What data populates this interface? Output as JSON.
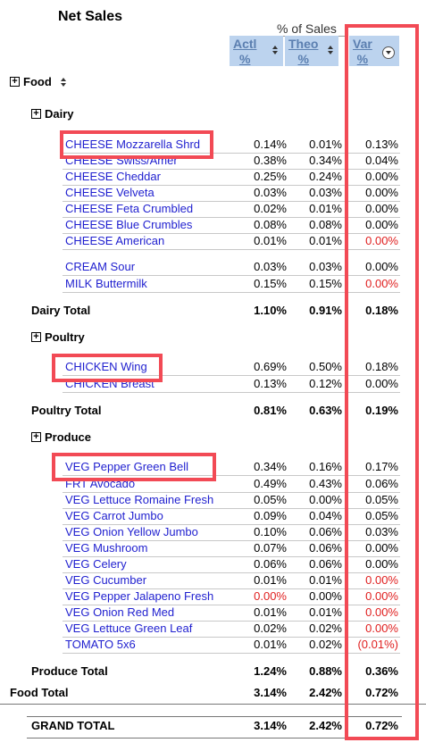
{
  "title": "Net Sales",
  "pct_header": "% of Sales",
  "columns": {
    "actl": [
      "Actl",
      "%"
    ],
    "theo": [
      "Theo",
      "%"
    ],
    "var": [
      "Var",
      "%"
    ]
  },
  "groups": {
    "food": "Food",
    "dairy": "Dairy",
    "poultry": "Poultry",
    "produce": "Produce"
  },
  "dairy_rows": [
    {
      "name": "CHEESE Mozzarella Shrd",
      "actl": "0.14%",
      "theo": "0.01%",
      "var": "0.13%",
      "neg": false
    },
    {
      "name": "CHEESE Swiss/Amer",
      "actl": "0.38%",
      "theo": "0.34%",
      "var": "0.04%",
      "neg": false
    },
    {
      "name": "CHEESE Cheddar",
      "actl": "0.25%",
      "theo": "0.24%",
      "var": "0.00%",
      "neg": false
    },
    {
      "name": "CHEESE Velveta",
      "actl": "0.03%",
      "theo": "0.03%",
      "var": "0.00%",
      "neg": false
    },
    {
      "name": "CHEESE Feta Crumbled",
      "actl": "0.02%",
      "theo": "0.01%",
      "var": "0.00%",
      "neg": false
    },
    {
      "name": "CHEESE Blue Crumbles",
      "actl": "0.08%",
      "theo": "0.08%",
      "var": "0.00%",
      "neg": false
    },
    {
      "name": "CHEESE American",
      "actl": "0.01%",
      "theo": "0.01%",
      "var": "0.00%",
      "neg": true
    },
    {
      "name": "CREAM Sour",
      "actl": "0.03%",
      "theo": "0.03%",
      "var": "0.00%",
      "neg": false
    },
    {
      "name": "MILK Buttermilk",
      "actl": "0.15%",
      "theo": "0.15%",
      "var": "0.00%",
      "neg": true
    }
  ],
  "dairy_total": {
    "label": "Dairy Total",
    "actl": "1.10%",
    "theo": "0.91%",
    "var": "0.18%"
  },
  "poultry_rows": [
    {
      "name": "CHICKEN Wing",
      "actl": "0.69%",
      "theo": "0.50%",
      "var": "0.18%",
      "neg": false
    },
    {
      "name": "CHICKEN Breast",
      "actl": "0.13%",
      "theo": "0.12%",
      "var": "0.00%",
      "neg": false
    }
  ],
  "poultry_total": {
    "label": "Poultry Total",
    "actl": "0.81%",
    "theo": "0.63%",
    "var": "0.19%"
  },
  "produce_rows": [
    {
      "name": "VEG Pepper Green Bell",
      "actl": "0.34%",
      "theo": "0.16%",
      "var": "0.17%",
      "neg": false
    },
    {
      "name": "FRT Avocado",
      "actl": "0.49%",
      "theo": "0.43%",
      "var": "0.06%",
      "neg": false
    },
    {
      "name": "VEG Lettuce Romaine Fresh",
      "actl": "0.05%",
      "theo": "0.00%",
      "var": "0.05%",
      "neg": false
    },
    {
      "name": "VEG Carrot Jumbo",
      "actl": "0.09%",
      "theo": "0.04%",
      "var": "0.05%",
      "neg": false
    },
    {
      "name": "VEG Onion Yellow Jumbo",
      "actl": "0.10%",
      "theo": "0.06%",
      "var": "0.03%",
      "neg": false
    },
    {
      "name": "VEG Mushroom",
      "actl": "0.07%",
      "theo": "0.06%",
      "var": "0.00%",
      "neg": false
    },
    {
      "name": "VEG Celery",
      "actl": "0.06%",
      "theo": "0.06%",
      "var": "0.00%",
      "neg": false
    },
    {
      "name": "VEG Cucumber",
      "actl": "0.01%",
      "theo": "0.01%",
      "var": "0.00%",
      "neg": true
    },
    {
      "name": "VEG Pepper Jalapeno Fresh",
      "actl": "0.00%",
      "theo": "0.00%",
      "var": "0.00%",
      "neg": true,
      "actl_neg": true
    },
    {
      "name": "VEG Onion Red Med",
      "actl": "0.01%",
      "theo": "0.01%",
      "var": "0.00%",
      "neg": true
    },
    {
      "name": "VEG Lettuce Green Leaf",
      "actl": "0.02%",
      "theo": "0.02%",
      "var": "0.00%",
      "neg": true
    },
    {
      "name": "TOMATO 5x6",
      "actl": "0.01%",
      "theo": "0.02%",
      "var": "(0.01%)",
      "neg": true
    }
  ],
  "produce_total": {
    "label": "Produce Total",
    "actl": "1.24%",
    "theo": "0.88%",
    "var": "0.36%"
  },
  "food_total": {
    "label": "Food Total",
    "actl": "3.14%",
    "theo": "2.42%",
    "var": "0.72%"
  },
  "grand_total": {
    "label": "GRAND TOTAL",
    "actl": "3.14%",
    "theo": "2.42%",
    "var": "0.72%"
  },
  "colors": {
    "link": "#1f1fcf",
    "negative": "#e02020",
    "header_bg": "#bcd3ee",
    "highlight": "#f24a55"
  }
}
